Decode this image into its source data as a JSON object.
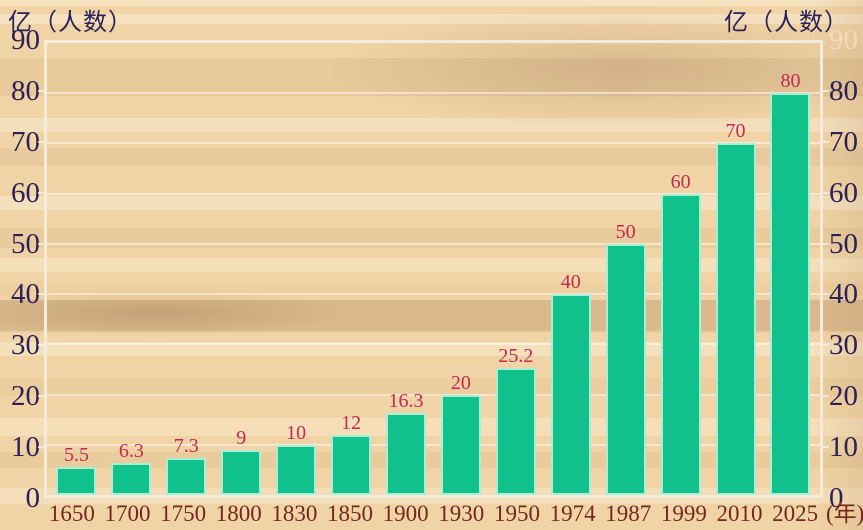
{
  "chart_data": {
    "type": "bar",
    "title": "",
    "unit_label_left": "亿（人数）",
    "unit_label_right": "亿（人数）",
    "x_axis_suffix": "(年)",
    "categories": [
      "1650",
      "1700",
      "1750",
      "1800",
      "1830",
      "1850",
      "1900",
      "1930",
      "1950",
      "1974",
      "1987",
      "1999",
      "2010",
      "2025"
    ],
    "values": [
      5.5,
      6.3,
      7.3,
      9,
      10,
      12,
      16.3,
      20,
      25.2,
      40,
      50,
      60,
      70,
      80
    ],
    "yticks": [
      0,
      10,
      20,
      30,
      40,
      50,
      60,
      70,
      80,
      90
    ],
    "ylim": [
      0,
      90
    ],
    "grid": true,
    "legend": "none",
    "colors": {
      "bar_fill": "#10c18c",
      "bar_border": "#a9eed5",
      "value_label": "#c22a50",
      "y_axis_label": "#2b2158",
      "y_axis_label_faded": "#f2d9c0",
      "x_axis_label": "#73281e",
      "plot_border": "#f3ecdb",
      "background_base": "#f1d4a5"
    },
    "right_axis_faded_tick": 90
  }
}
